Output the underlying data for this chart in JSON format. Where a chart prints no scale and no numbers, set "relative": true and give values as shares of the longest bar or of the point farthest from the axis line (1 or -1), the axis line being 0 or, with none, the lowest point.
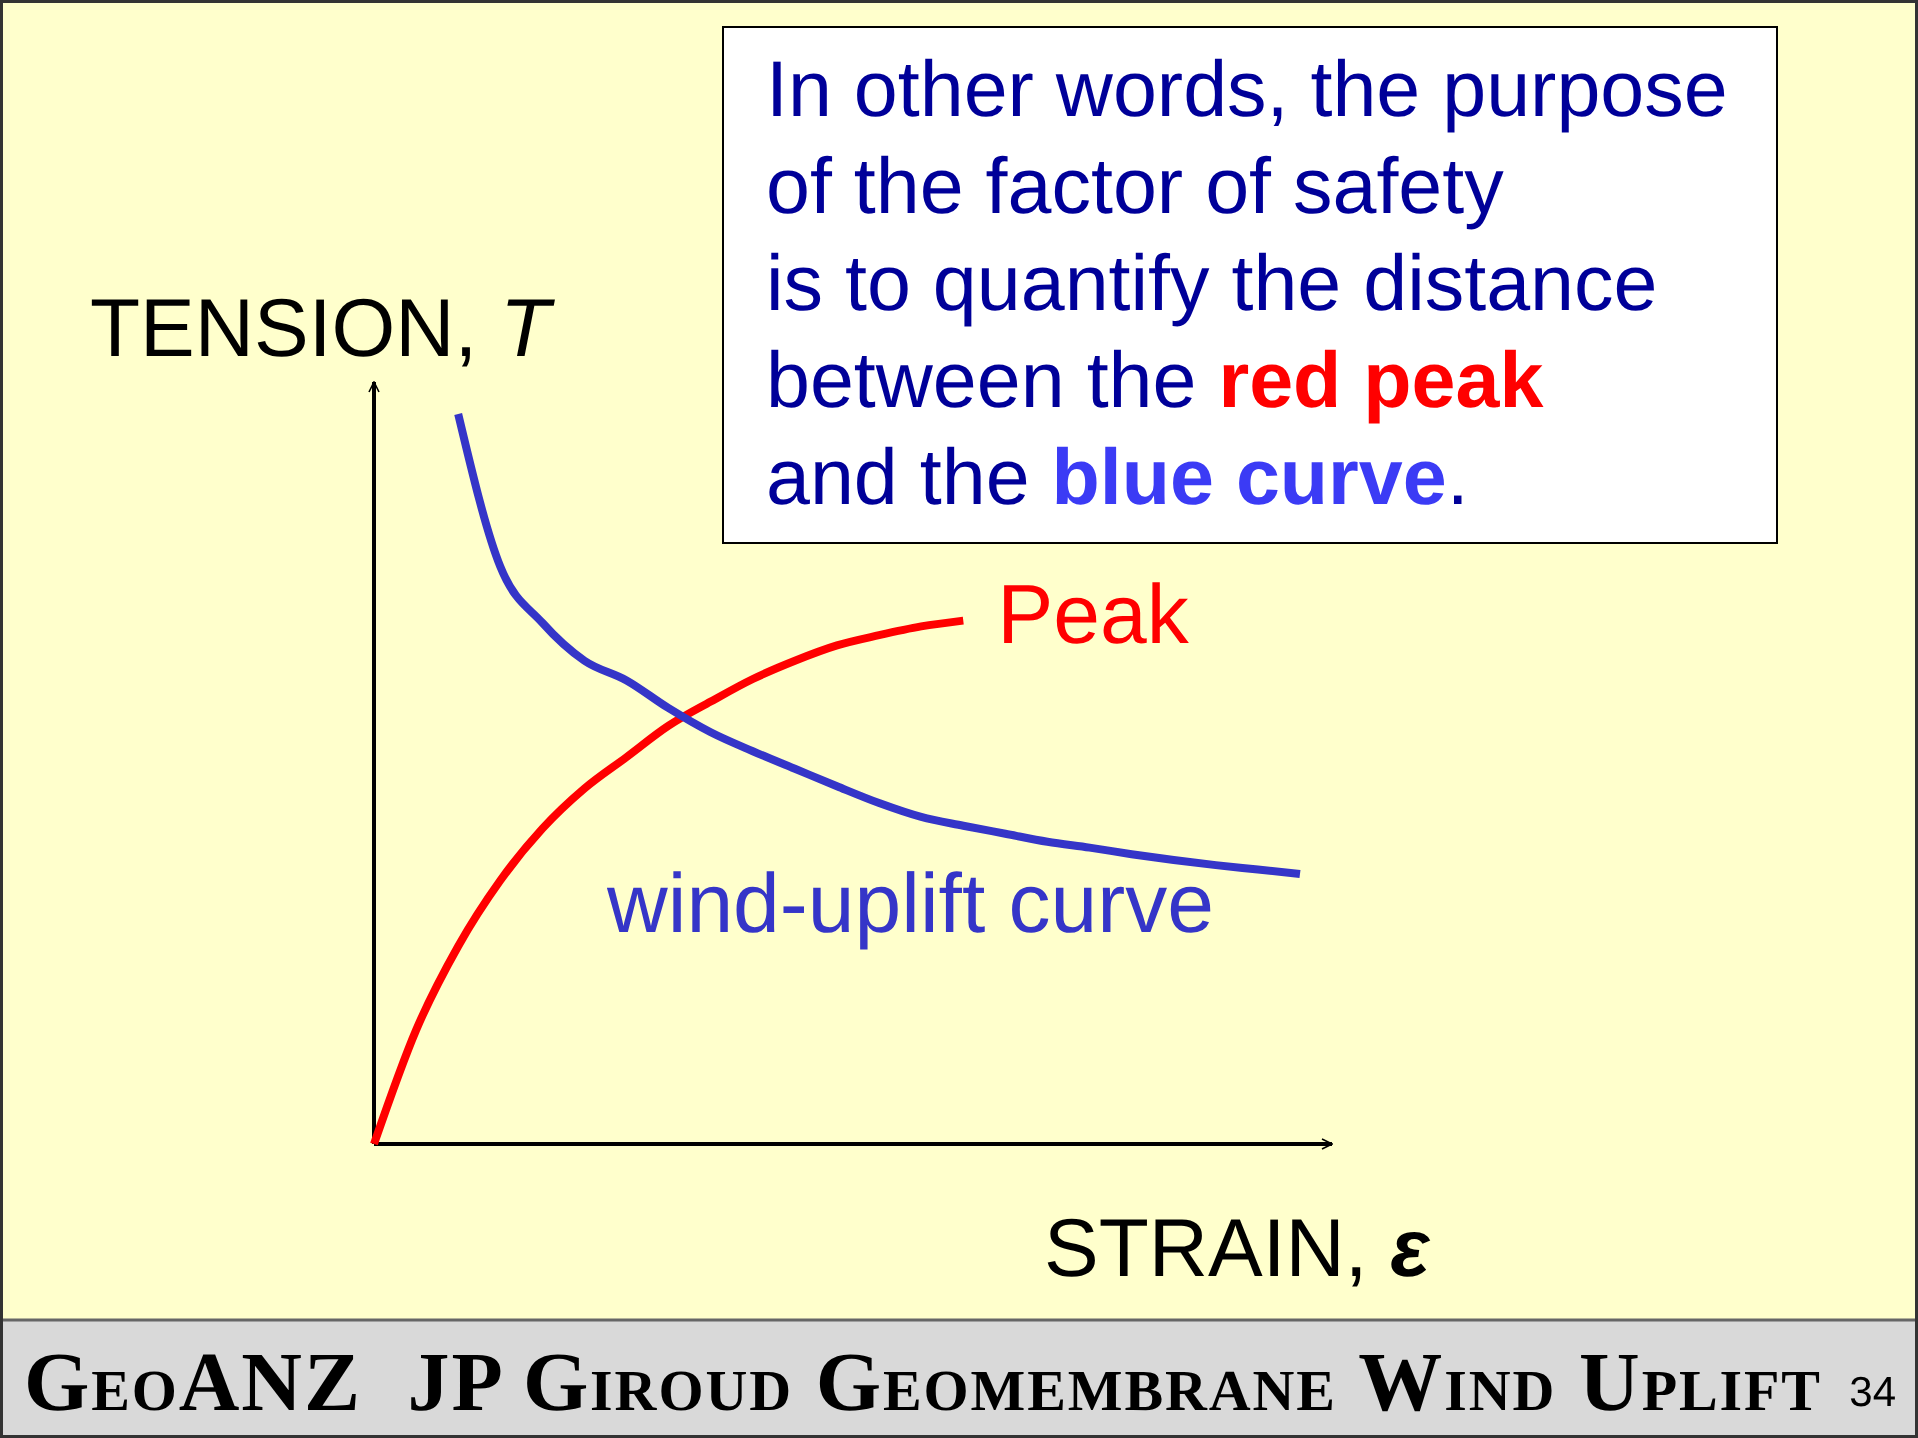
{
  "chart_data": {
    "type": "line",
    "relative": true,
    "xlabel": "STRAIN, ε",
    "ylabel": "TENSION, T",
    "categories": [
      null,
      null,
      null,
      null,
      null,
      null,
      null,
      null,
      null,
      null,
      null,
      null,
      null,
      null,
      null,
      null,
      null,
      null,
      null,
      null,
      null,
      null,
      null
    ],
    "series": [
      {
        "color": "#ff0000",
        "values": [
          0,
          0.156,
          0.271,
          0.361,
          0.432,
          0.487,
          0.53,
          0.573,
          0.606,
          0.637,
          0.662,
          0.683,
          0.697,
          0.709,
          0.717,
          null,
          null,
          null,
          null,
          null,
          null,
          null,
          null
        ]
      },
      {
        "name": "wind-uplift curve",
        "color": "#3535c8",
        "values": [
          null,
          null,
          1,
          0.791,
          0.714,
          0.662,
          0.635,
          0.597,
          0.564,
          0.538,
          0.514,
          0.49,
          0.467,
          0.448,
          0.436,
          0.425,
          0.414,
          0.406,
          0.397,
          0.389,
          0.382,
          0.376,
          0.37
        ]
      }
    ],
    "annotations": [
      "In other words, the purpose\nof the factor of safety\nis to quantify the distance\nbetween the red peak\nand the blue curve.",
      "Peak",
      "GeoANZ  JP Giroud Geomembrane Wind Uplift",
      "34"
    ]
  }
}
